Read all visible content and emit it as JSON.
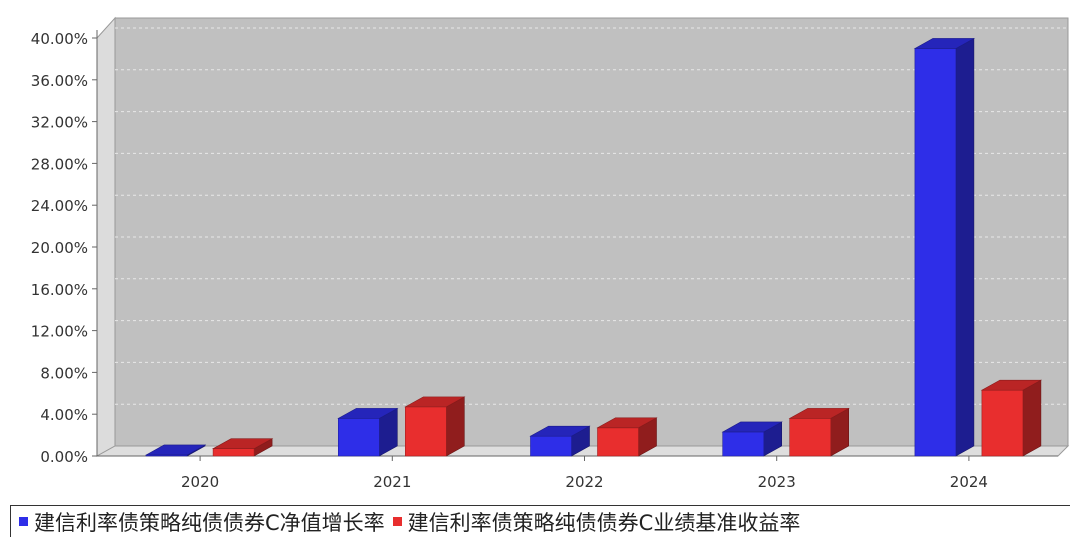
{
  "chart_data": {
    "type": "bar",
    "categories": [
      "2020",
      "2021",
      "2022",
      "2023",
      "2024"
    ],
    "series": [
      {
        "name": "建信利率债策略纯债债券C净值增长率",
        "values": [
          0.1,
          3.6,
          1.9,
          2.3,
          39.0
        ],
        "color": "#2e2ee8"
      },
      {
        "name": "建信利率债策略纯债债券C业绩基准收益率",
        "values": [
          0.7,
          4.7,
          2.7,
          3.6,
          6.3
        ],
        "color": "#e82e2e"
      }
    ],
    "yticks": [
      "0.00%",
      "4.00%",
      "8.00%",
      "12.00%",
      "16.00%",
      "20.00%",
      "24.00%",
      "28.00%",
      "32.00%",
      "36.00%",
      "40.00%"
    ],
    "ylim": [
      0,
      40
    ],
    "grid": true,
    "legend_position": "bottom"
  }
}
